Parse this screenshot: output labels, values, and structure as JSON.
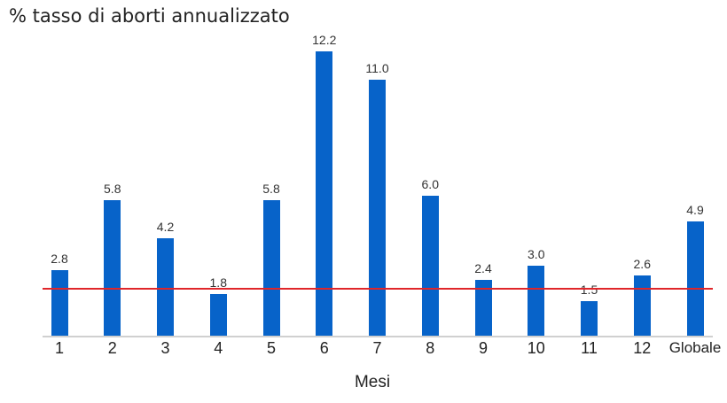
{
  "chart_data": {
    "type": "bar",
    "title": "% tasso di aborti annualizzato",
    "xlabel": "Mesi",
    "ylabel": "",
    "categories": [
      "1",
      "2",
      "3",
      "4",
      "5",
      "6",
      "7",
      "8",
      "9",
      "10",
      "11",
      "12",
      "Globale"
    ],
    "values": [
      2.8,
      5.8,
      4.2,
      1.8,
      5.8,
      12.2,
      11.0,
      6.0,
      2.4,
      3.0,
      1.5,
      2.6,
      4.9
    ],
    "value_labels": [
      "2.8",
      "5.8",
      "4.2",
      "1.8",
      "5.8",
      "12.2",
      "11.0",
      "6.0",
      "2.4",
      "3.0",
      "1.5",
      "2.6",
      "4.9"
    ],
    "reference_line": {
      "value": 2.0,
      "color": "#e0262a"
    },
    "ylim": [
      0,
      12.2
    ],
    "grid": false,
    "legend": false,
    "bar_color": "#0763c9"
  }
}
